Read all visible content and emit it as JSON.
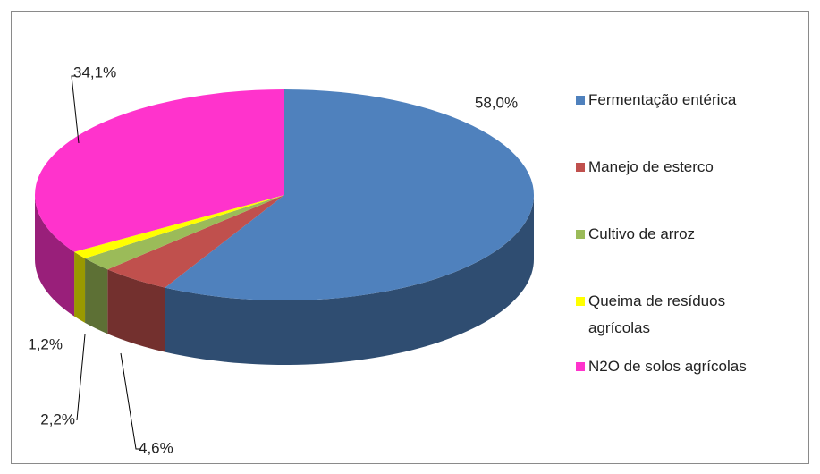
{
  "chart_data": {
    "type": "pie",
    "categories": [
      "Fermentação entérica",
      "Manejo de esterco",
      "Cultivo de arroz",
      "Queima de resíduos agrícolas",
      "N2O de solos agrícolas"
    ],
    "values": [
      58.0,
      4.6,
      2.2,
      1.2,
      34.1
    ],
    "value_labels": [
      "58,0%",
      "4,6%",
      "2,2%",
      "1,2%",
      "34,1%"
    ],
    "colors": [
      "#4f81bd",
      "#c0504d",
      "#9bbb59",
      "#ffff00",
      "#ff33cc"
    ],
    "legend": "right"
  }
}
